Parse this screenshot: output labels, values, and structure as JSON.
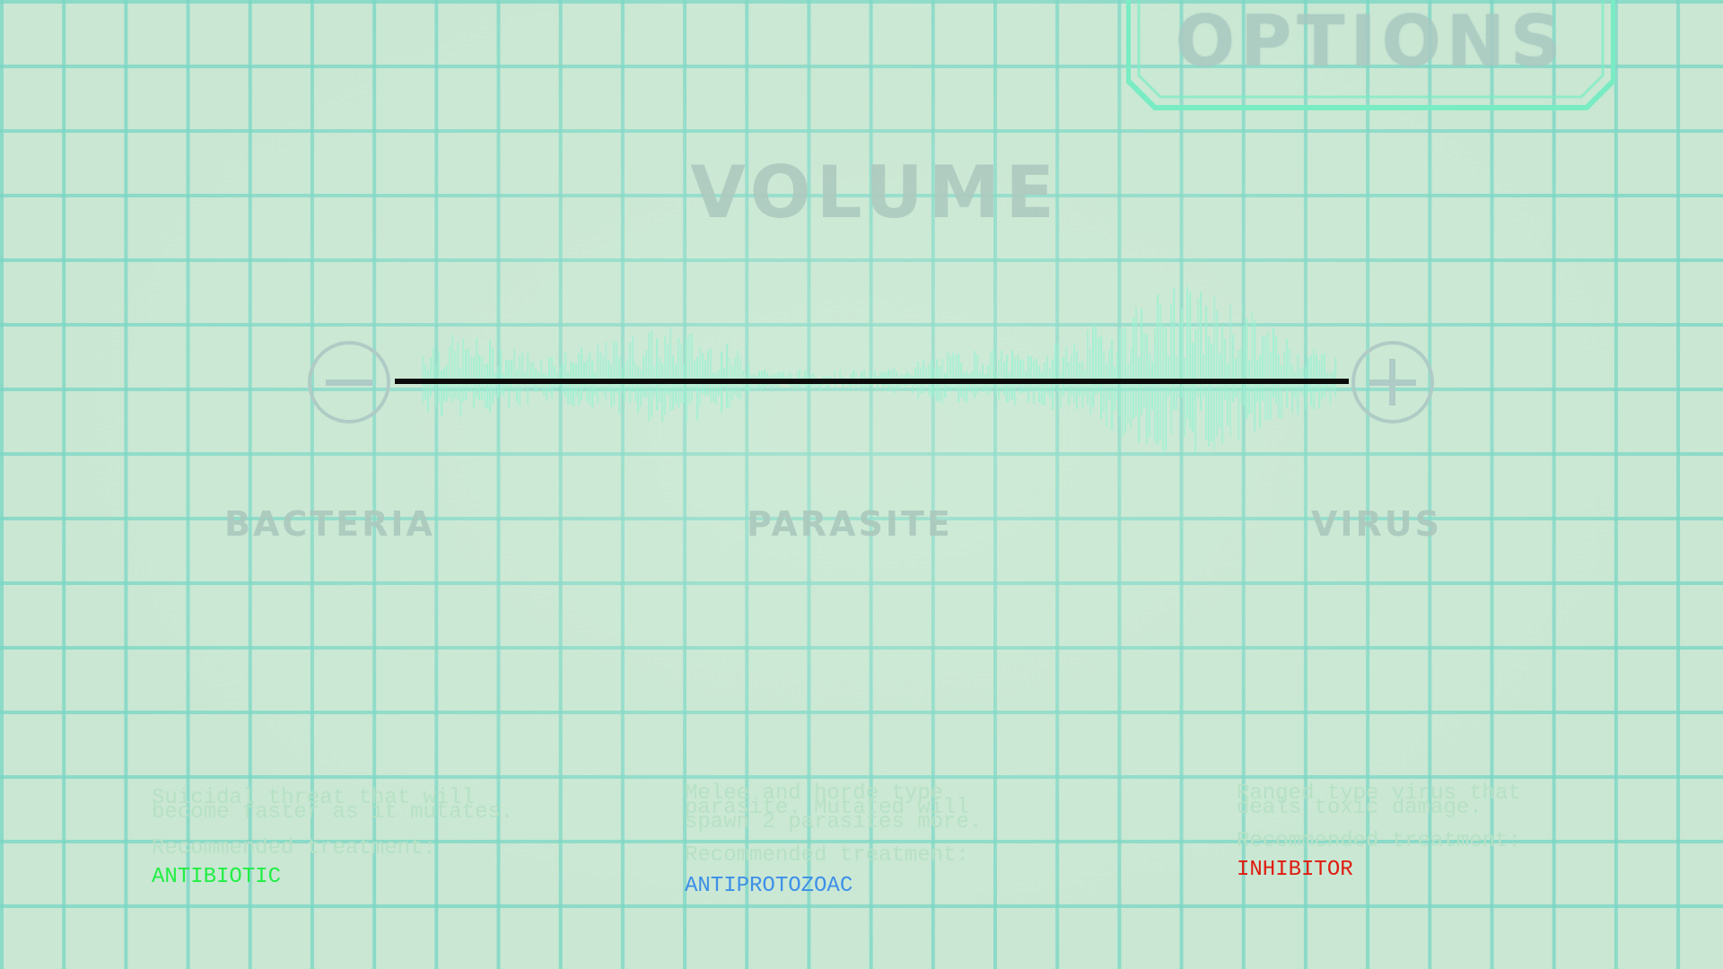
{
  "options": {
    "title": "OPTIONS"
  },
  "volume": {
    "title": "VOLUME",
    "level": 1.0,
    "minus_icon": "minus-icon",
    "plus_icon": "plus-icon"
  },
  "enemies": [
    {
      "name": "BACTERIA",
      "description": [
        "Suicidal threat that will",
        "become faster as it mutates."
      ],
      "recommended": "Recommended treatment:",
      "treatment": "ANTIBIOTIC",
      "color": "#22ee44"
    },
    {
      "name": "PARASITE",
      "description": [
        "Melee and horde type",
        "parasite. Mutated will",
        "spawn 2 parasites more."
      ],
      "recommended": "Recommended treatment:",
      "treatment": "ANTIPROTOZOAC",
      "color": "#3d8fe8"
    },
    {
      "name": "VIRUS",
      "description": [
        "Ranged type virus that",
        "deals toxic damage."
      ],
      "recommended": "Recommended treatment:",
      "treatment": "INHIBITOR",
      "color": "#e01b0f"
    }
  ],
  "colors": {
    "grid": "#78d6c4",
    "background": "#c9e7d3",
    "panel_border": "#79ecc3",
    "waveform": "#9ff0d2"
  }
}
